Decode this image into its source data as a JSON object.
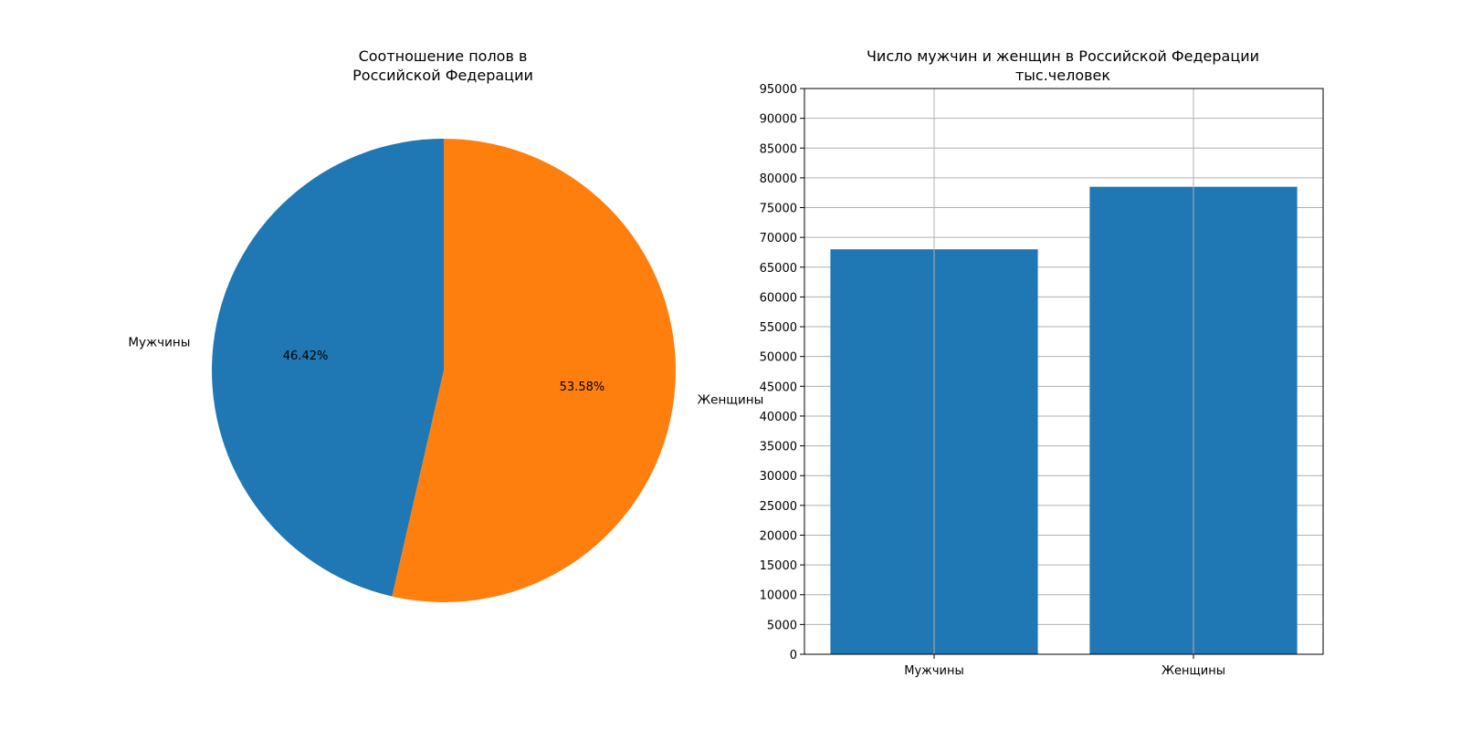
{
  "chart_data": [
    {
      "type": "pie",
      "title_lines": [
        "Соотношение полов в",
        "Российской Федерации"
      ],
      "labels": [
        "Мужчины",
        "Женщины"
      ],
      "values": [
        46.42,
        53.58
      ],
      "value_labels": [
        "46.42%",
        "53.58%"
      ],
      "colors": [
        "#1f77b4",
        "#ff7f0e"
      ],
      "start_angle_deg": 90,
      "direction": "counterclockwise"
    },
    {
      "type": "bar",
      "title_lines": [
        "Число мужчин и женщин в Российской Федерации",
        "тыс.человек"
      ],
      "categories": [
        "Мужчины",
        "Женщины"
      ],
      "values": [
        68000,
        78500
      ],
      "color": "#1f77b4",
      "ylim": [
        0,
        95000
      ],
      "ytick_step": 5000,
      "grid": true
    }
  ]
}
